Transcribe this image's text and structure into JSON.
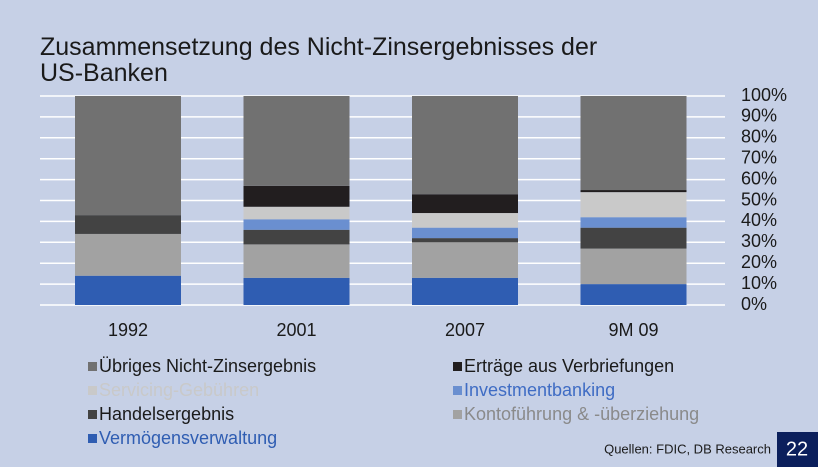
{
  "chart_data": {
    "type": "stacked_bar",
    "title": "Zusammensetzung des Nicht-Zinsergebnisses der US-Banken",
    "categories": [
      "1992",
      "2001",
      "2007",
      "9M 09"
    ],
    "series": [
      {
        "name": "Übriges Nicht-Zinsergebnis",
        "color": "#717171",
        "label_color": "#1a1a1a",
        "values": [
          57,
          43,
          47,
          45
        ]
      },
      {
        "name": "Erträge aus Verbriefungen",
        "color": "#221e1f",
        "label_color": "#1a1a1a",
        "values": [
          0,
          10,
          9,
          1
        ]
      },
      {
        "name": "Servicing-Gebühren",
        "color": "#c9c9c9",
        "label_color": "#c9c9c9",
        "values": [
          0,
          6,
          7,
          12
        ]
      },
      {
        "name": "Investmentbanking",
        "color": "#6a8fd0",
        "label_color": "#3f6cc4",
        "values": [
          0,
          5,
          5,
          5
        ]
      },
      {
        "name": "Handelsergebnis",
        "color": "#434343",
        "label_color": "#1a1a1a",
        "values": [
          9,
          7,
          2,
          10
        ]
      },
      {
        "name": "Kontoführung & -überziehung",
        "color": "#a2a2a2",
        "label_color": "#8a8a8a",
        "values": [
          20,
          16,
          17,
          17
        ]
      },
      {
        "name": "Vermögensverwaltung",
        "color": "#2f5db2",
        "label_color": "#2f5db2",
        "values": [
          14,
          13,
          13,
          10
        ]
      }
    ],
    "ylim": [
      0,
      100
    ],
    "yticks": [
      {
        "value": 0,
        "label": "0%"
      },
      {
        "value": 10,
        "label": "10%"
      },
      {
        "value": 20,
        "label": "20%"
      },
      {
        "value": 30,
        "label": "30%"
      },
      {
        "value": 40,
        "label": "40%"
      },
      {
        "value": 50,
        "label": "50%"
      },
      {
        "value": 60,
        "label": "60%"
      },
      {
        "value": 70,
        "label": "70%"
      },
      {
        "value": 80,
        "label": "80%"
      },
      {
        "value": 90,
        "label": "90%"
      },
      {
        "value": 100,
        "label": "100%"
      }
    ],
    "grid": true,
    "source": "Quellen: FDIC, DB Research",
    "page_number": "22"
  }
}
